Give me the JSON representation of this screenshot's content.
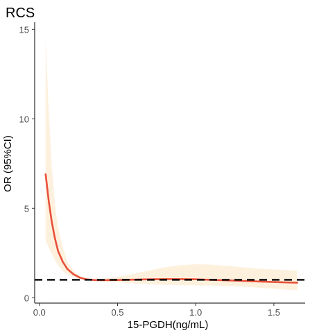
{
  "chart_data": {
    "type": "line",
    "title": "RCS",
    "xlabel": "15-PGDH(ng/mL)",
    "ylabel": "OR (95%CI)",
    "xlim": [
      -0.03,
      1.7
    ],
    "ylim": [
      -0.3,
      15.4
    ],
    "x_ticks": [
      0.0,
      0.5,
      1.0,
      1.5
    ],
    "x_tick_labels": [
      "0.0",
      "0.5",
      "1.0",
      "1.5"
    ],
    "y_ticks": [
      0,
      5,
      10,
      15
    ],
    "y_tick_labels": [
      "0",
      "5",
      "10",
      "15"
    ],
    "reference_line": {
      "y": 1,
      "style": "dashed",
      "color": "#000000"
    },
    "grid": false,
    "legend": "none",
    "series": [
      {
        "color": "#e8503a",
        "band_color": "#fdf1de",
        "x": [
          0.04,
          0.06,
          0.08,
          0.1,
          0.12,
          0.15,
          0.18,
          0.22,
          0.26,
          0.3,
          0.35,
          0.4,
          0.5,
          0.6,
          0.7,
          0.8,
          0.9,
          1.0,
          1.1,
          1.2,
          1.3,
          1.4,
          1.5,
          1.6,
          1.65
        ],
        "y": [
          6.9,
          5.4,
          4.2,
          3.3,
          2.6,
          2.0,
          1.6,
          1.3,
          1.12,
          1.03,
          0.99,
          0.98,
          0.99,
          1.01,
          1.03,
          1.04,
          1.04,
          1.03,
          1.0,
          0.97,
          0.94,
          0.91,
          0.88,
          0.85,
          0.84
        ],
        "lower": [
          3.2,
          2.8,
          2.45,
          2.1,
          1.8,
          1.5,
          1.3,
          1.15,
          1.05,
          0.98,
          0.95,
          0.92,
          0.86,
          0.8,
          0.75,
          0.72,
          0.7,
          0.69,
          0.68,
          0.66,
          0.62,
          0.56,
          0.5,
          0.44,
          0.42
        ],
        "upper": [
          14.5,
          10.4,
          7.3,
          5.2,
          3.9,
          2.8,
          2.0,
          1.5,
          1.22,
          1.08,
          1.03,
          1.05,
          1.17,
          1.33,
          1.52,
          1.7,
          1.82,
          1.87,
          1.85,
          1.78,
          1.7,
          1.63,
          1.58,
          1.54,
          1.52
        ]
      }
    ]
  }
}
